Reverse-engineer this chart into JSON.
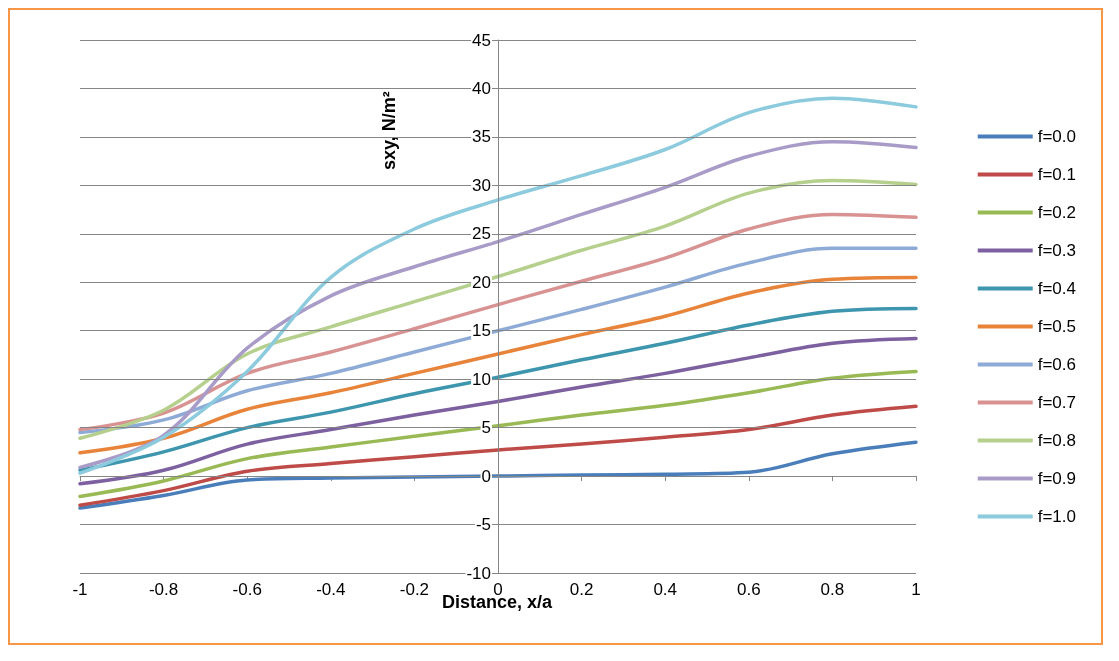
{
  "chart_data": {
    "type": "line",
    "xlabel": "Distance, x/a",
    "ylabel": "sxy, N/m²",
    "x": [
      -1,
      -0.8,
      -0.6,
      -0.4,
      -0.2,
      0,
      0.2,
      0.4,
      0.6,
      0.8,
      1
    ],
    "xlim": [
      -1,
      1
    ],
    "xticks": [
      -1,
      -0.8,
      -0.6,
      -0.4,
      -0.2,
      0,
      0.2,
      0.4,
      0.6,
      0.8,
      1
    ],
    "ylim": [
      -10,
      45
    ],
    "yticks": [
      -10,
      -5,
      0,
      5,
      10,
      15,
      20,
      25,
      30,
      35,
      40,
      45
    ],
    "grid": "y",
    "legend": "right",
    "marker": "none",
    "line_style": "solid",
    "series": [
      {
        "name": "f=0.0",
        "color": "#4a7ebb",
        "values": [
          -3.3,
          -2,
          -0.4,
          -0.2,
          -0.1,
          0,
          0.1,
          0.2,
          0.4,
          2.3,
          3.5
        ]
      },
      {
        "name": "f=0.1",
        "color": "#be4b48",
        "values": [
          -3,
          -1.5,
          0.5,
          1.3,
          2,
          2.7,
          3.3,
          4,
          4.8,
          6.3,
          7.2
        ]
      },
      {
        "name": "f=0.2",
        "color": "#98b954",
        "values": [
          -2.1,
          -0.5,
          1.8,
          3,
          4.1,
          5.2,
          6.3,
          7.3,
          8.6,
          10.1,
          10.8
        ]
      },
      {
        "name": "f=0.3",
        "color": "#7d60a0",
        "values": [
          -0.8,
          0.6,
          3.3,
          4.8,
          6.3,
          7.7,
          9.2,
          10.6,
          12.2,
          13.7,
          14.2
        ]
      },
      {
        "name": "f=0.4",
        "color": "#3d96ae",
        "values": [
          0.6,
          2.5,
          5,
          6.6,
          8.5,
          10.2,
          12,
          13.7,
          15.6,
          17,
          17.3
        ]
      },
      {
        "name": "f=0.5",
        "color": "#e8833a",
        "values": [
          2.4,
          3.9,
          6.9,
          8.6,
          10.6,
          12.6,
          14.6,
          16.5,
          18.9,
          20.3,
          20.5
        ]
      },
      {
        "name": "f=0.6",
        "color": "#8eaad6",
        "values": [
          4.5,
          5.8,
          8.8,
          10.6,
          12.8,
          15,
          17.2,
          19.5,
          22,
          23.5,
          23.5
        ]
      },
      {
        "name": "f=0.7",
        "color": "#d99292",
        "values": [
          4.8,
          6.5,
          10.6,
          12.8,
          15.2,
          17.7,
          20.1,
          22.5,
          25.5,
          27,
          26.7
        ]
      },
      {
        "name": "f=0.8",
        "color": "#b5cf8c",
        "values": [
          3.9,
          6.8,
          12.6,
          15.4,
          18,
          20.6,
          23.3,
          25.8,
          29.2,
          30.5,
          30.1
        ]
      },
      {
        "name": "f=0.9",
        "color": "#a99bc8",
        "values": [
          0.9,
          4.2,
          13.2,
          18.6,
          21.6,
          24.2,
          27,
          29.8,
          33,
          34.5,
          33.9
        ]
      },
      {
        "name": "f=1.0",
        "color": "#8ccadd",
        "values": [
          0.3,
          4,
          10.8,
          20.5,
          25.5,
          28.5,
          31,
          33.7,
          37.5,
          39,
          38.1
        ]
      }
    ]
  }
}
